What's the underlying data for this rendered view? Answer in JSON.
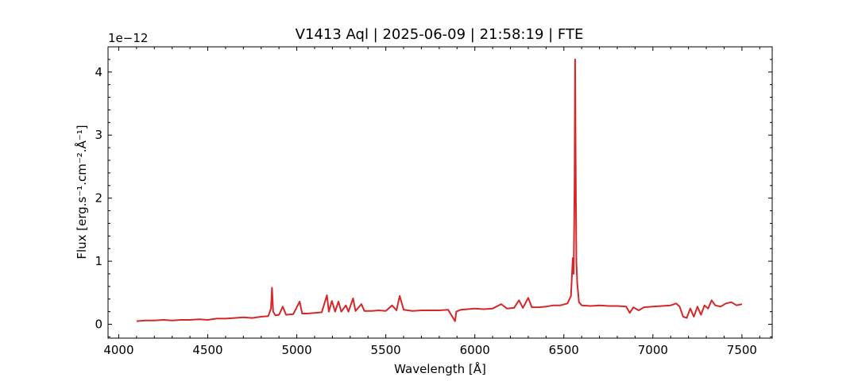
{
  "chart_data": {
    "type": "line",
    "title": "V1413 Aql | 2025-06-09 | 21:58:19 | FTE",
    "xlabel": "Wavelength [Å]",
    "ylabel": "Flux [erg.s⁻¹.cm⁻².Å⁻¹]",
    "y_offset_label": "1e−12",
    "xlim": [
      3940,
      7670
    ],
    "ylim": [
      -0.22,
      4.4
    ],
    "y_scale_factor": 1e-12,
    "xticks": [
      4000,
      4500,
      5000,
      5500,
      6000,
      6500,
      7000,
      7500
    ],
    "xtick_labels": [
      "4000",
      "4500",
      "5000",
      "5500",
      "6000",
      "6500",
      "7000",
      "7500"
    ],
    "yticks": [
      0,
      1,
      2,
      3,
      4
    ],
    "ytick_labels": [
      "0",
      "1",
      "2",
      "3",
      "4"
    ],
    "grid": false,
    "color": "#d62728",
    "series": [
      {
        "x": [
          4100,
          4150,
          4200,
          4250,
          4300,
          4350,
          4400,
          4450,
          4500,
          4550,
          4600,
          4650,
          4700,
          4750,
          4800,
          4840,
          4855,
          4861,
          4867,
          4880,
          4900,
          4921,
          4940,
          4980,
          5016,
          5030,
          5060,
          5100,
          5140,
          5169,
          5180,
          5197,
          5215,
          5234,
          5250,
          5276,
          5290,
          5316,
          5330,
          5363,
          5380,
          5420,
          5460,
          5500,
          5535,
          5560,
          5578,
          5600,
          5650,
          5700,
          5750,
          5800,
          5850,
          5889,
          5896,
          5920,
          5960,
          6000,
          6050,
          6100,
          6148,
          6180,
          6220,
          6248,
          6270,
          6300,
          6320,
          6360,
          6400,
          6440,
          6480,
          6520,
          6540,
          6550,
          6555,
          6560,
          6563,
          6566,
          6570,
          6575,
          6585,
          6600,
          6650,
          6700,
          6750,
          6800,
          6850,
          6870,
          6890,
          6920,
          6950,
          7000,
          7050,
          7100,
          7130,
          7150,
          7170,
          7190,
          7210,
          7230,
          7250,
          7270,
          7290,
          7310,
          7330,
          7350,
          7380,
          7410,
          7440,
          7470,
          7500
        ],
        "y": [
          0.05,
          0.06,
          0.06,
          0.07,
          0.06,
          0.07,
          0.07,
          0.08,
          0.07,
          0.09,
          0.09,
          0.1,
          0.11,
          0.1,
          0.12,
          0.13,
          0.25,
          0.58,
          0.2,
          0.14,
          0.15,
          0.28,
          0.15,
          0.16,
          0.36,
          0.17,
          0.17,
          0.18,
          0.19,
          0.46,
          0.2,
          0.37,
          0.2,
          0.36,
          0.2,
          0.3,
          0.2,
          0.41,
          0.21,
          0.32,
          0.21,
          0.21,
          0.22,
          0.21,
          0.3,
          0.22,
          0.45,
          0.23,
          0.21,
          0.22,
          0.22,
          0.22,
          0.23,
          0.05,
          0.2,
          0.23,
          0.24,
          0.25,
          0.24,
          0.25,
          0.32,
          0.25,
          0.26,
          0.38,
          0.26,
          0.42,
          0.27,
          0.27,
          0.28,
          0.3,
          0.3,
          0.33,
          0.45,
          1.05,
          0.8,
          2.2,
          4.2,
          2.6,
          1.0,
          0.65,
          0.35,
          0.3,
          0.29,
          0.3,
          0.29,
          0.29,
          0.28,
          0.18,
          0.27,
          0.22,
          0.27,
          0.28,
          0.29,
          0.3,
          0.33,
          0.28,
          0.12,
          0.1,
          0.25,
          0.12,
          0.28,
          0.15,
          0.3,
          0.25,
          0.38,
          0.3,
          0.28,
          0.33,
          0.35,
          0.3,
          0.32
        ]
      }
    ]
  }
}
